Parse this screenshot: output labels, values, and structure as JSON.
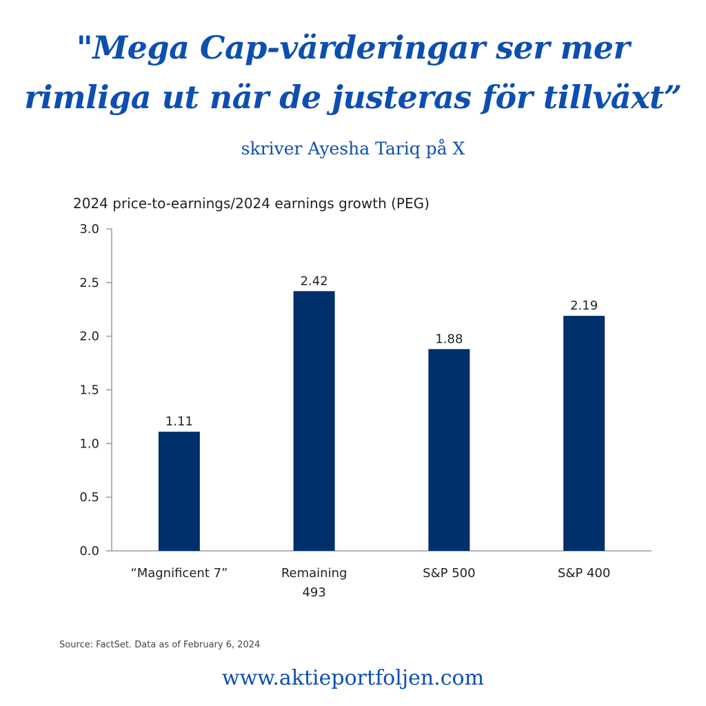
{
  "header": {
    "headline_line_1": "\"Mega Cap-värderingar ser mer",
    "headline_line_2": "rimliga ut när de justeras för tillväxt”",
    "subheadline": "skriver Ayesha Tariq på X"
  },
  "chart_data": {
    "type": "bar",
    "title": "2024 price-to-earnings/2024 earnings growth (PEG)",
    "categories": [
      [
        "“Magnificent 7”"
      ],
      [
        "Remaining",
        "493"
      ],
      [
        "S&P 500"
      ],
      [
        "S&P 400"
      ]
    ],
    "values": [
      1.11,
      2.42,
      1.88,
      2.19
    ],
    "value_labels": [
      "1.11",
      "2.42",
      "1.88",
      "2.19"
    ],
    "ylim": [
      0,
      3.0
    ],
    "yticks": [
      "0.0",
      "0.5",
      "1.0",
      "1.5",
      "2.0",
      "2.5",
      "3.0"
    ],
    "xlabel": "",
    "ylabel": "",
    "grid": false,
    "bar_color": "#00306c",
    "source": "Source: FactSet. Data as of February 6, 2024"
  },
  "footer": {
    "url": "www.aktieportfoljen.com"
  },
  "colors": {
    "accent": "#0d4fb0",
    "bar": "#00306c"
  }
}
